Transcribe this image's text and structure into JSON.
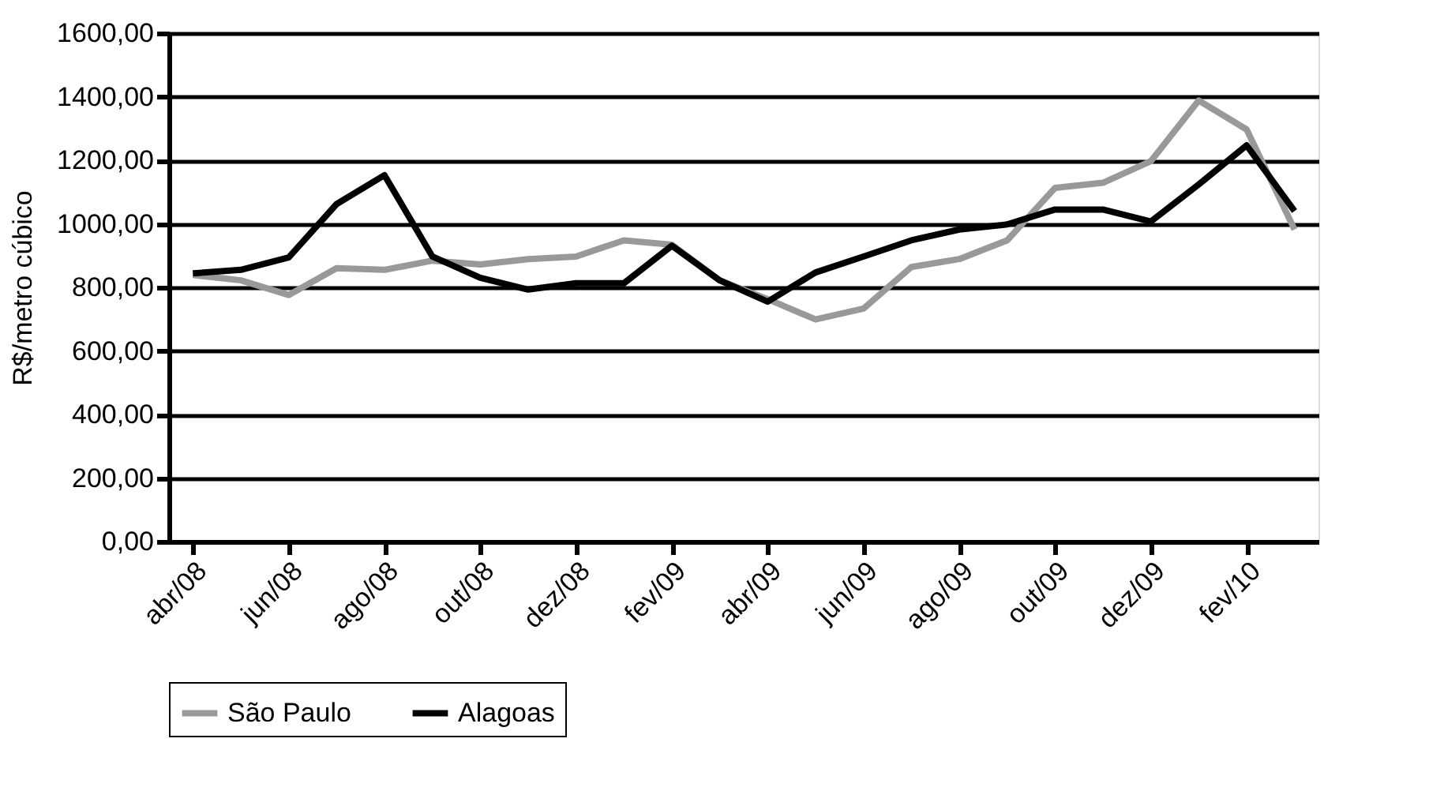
{
  "chart_data": {
    "type": "line",
    "ylabel": "R$/metro cúbico",
    "categories": [
      "abr/08",
      null,
      "jun/08",
      null,
      "ago/08",
      null,
      "out/08",
      null,
      "dez/08",
      null,
      "fev/09",
      null,
      "abr/09",
      null,
      "jun/09",
      null,
      "ago/09",
      null,
      "out/09",
      null,
      "dez/09",
      null,
      "fev/10",
      null
    ],
    "series": [
      {
        "name": "São Paulo",
        "color": "#999999",
        "values": [
          839,
          822,
          776,
          860,
          855,
          884,
          872,
          889,
          897,
          948,
          934,
          822,
          763,
          699,
          733,
          864,
          889,
          948,
          1113,
          1129,
          1197,
          1388,
          1297,
          982
        ]
      },
      {
        "name": "Alagoas",
        "color": "#000000",
        "values": [
          844,
          855,
          894,
          1062,
          1153,
          897,
          830,
          793,
          813,
          813,
          931,
          822,
          755,
          847,
          897,
          948,
          982,
          998,
          1045,
          1045,
          1007,
          1124,
          1247,
          1040
        ]
      }
    ],
    "ylim": [
      0,
      1600
    ],
    "yticks": [
      {
        "value": 0,
        "label": "0,00"
      },
      {
        "value": 200,
        "label": "200,00"
      },
      {
        "value": 400,
        "label": "400,00"
      },
      {
        "value": 600,
        "label": "600,00"
      },
      {
        "value": 800,
        "label": "800,00"
      },
      {
        "value": 1000,
        "label": "1000,00"
      },
      {
        "value": 1200,
        "label": "1200,00"
      },
      {
        "value": 1400,
        "label": "1400,00"
      },
      {
        "value": 1600,
        "label": "1600,00"
      }
    ],
    "grid": "y",
    "legend": "bottom",
    "marker": "none",
    "line_style": "solid"
  }
}
